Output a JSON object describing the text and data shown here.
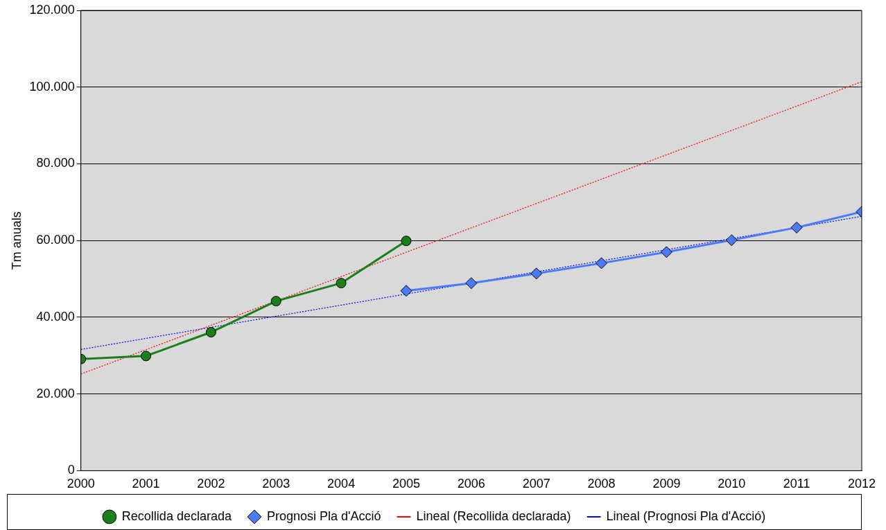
{
  "chart_data": {
    "type": "line",
    "ylabel": "Tm anuals",
    "xlim": [
      2000,
      2012
    ],
    "xticks": [
      2000,
      2001,
      2002,
      2003,
      2004,
      2005,
      2006,
      2007,
      2008,
      2009,
      2010,
      2011,
      2012
    ],
    "ylim": [
      0,
      120000
    ],
    "yticks": [
      0,
      {
        "value": 20000,
        "label": "20.000"
      },
      {
        "value": 40000,
        "label": "40.000"
      },
      {
        "value": 60000,
        "label": "60.000"
      },
      {
        "value": 80000,
        "label": "80.000"
      },
      {
        "value": 100000,
        "label": "100.000"
      },
      {
        "value": 120000,
        "label": "120.000"
      }
    ],
    "grid": "y",
    "legend": "bottom",
    "series": [
      {
        "name": "Recollida declarada",
        "color": "#1a7f1a",
        "marker": "circle",
        "line_style": "solid",
        "x": [
          2000,
          2001,
          2002,
          2003,
          2004,
          2005
        ],
        "values": [
          29100,
          29900,
          36100,
          44200,
          48900,
          59900
        ]
      },
      {
        "name": "Prognosi Pla d'Acció",
        "color": "#4a7bff",
        "marker": "diamond",
        "line_style": "solid",
        "x": [
          2005,
          2006,
          2007,
          2008,
          2009,
          2010,
          2011,
          2012
        ],
        "values": [
          46900,
          48900,
          51400,
          54100,
          57000,
          60100,
          63400,
          67500
        ]
      },
      {
        "name": "Lineal (Recollida declarada)",
        "color": "#ff0000",
        "marker": "none",
        "line_style": "dotted",
        "x": [
          2000,
          2012
        ],
        "values": [
          25200,
          101400
        ]
      },
      {
        "name": "Lineal (Prognosi Pla d'Acció)",
        "color": "#0000ff",
        "marker": "none",
        "line_style": "dotted",
        "x": [
          2000,
          2012
        ],
        "values": [
          31600,
          66300
        ]
      }
    ]
  }
}
